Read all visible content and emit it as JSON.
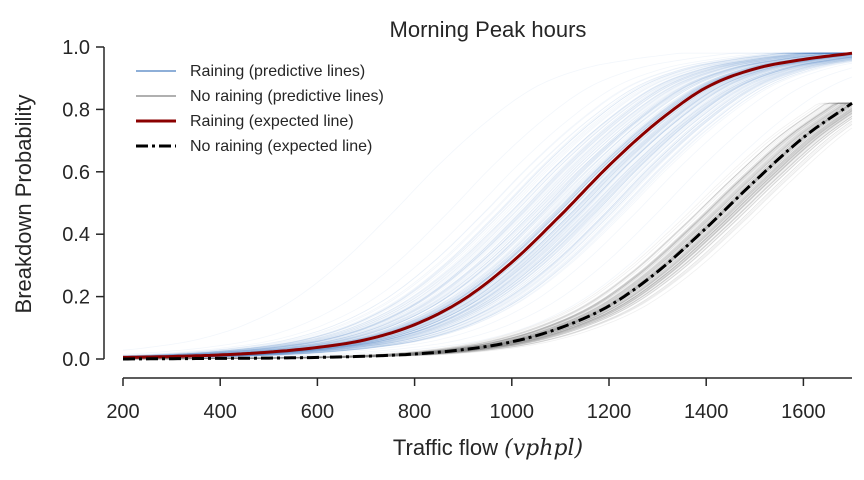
{
  "chart_data": {
    "type": "line",
    "title": "Morning Peak hours",
    "xlabel": "Traffic flow",
    "xlabel_unit": "(vphpl)",
    "ylabel": "Breakdown Probability",
    "xlim": [
      200,
      1700
    ],
    "ylim": [
      0.0,
      1.0
    ],
    "xticks": [
      "200",
      "400",
      "600",
      "800",
      "1000",
      "1200",
      "1400",
      "1600"
    ],
    "yticks": [
      "0.0",
      "0.2",
      "0.4",
      "0.6",
      "0.8",
      "1.0"
    ],
    "grid": false,
    "legend_position": "top-left",
    "series": [
      {
        "name": "Raining (predictive lines)",
        "color": "#4a7fc1",
        "style": "band of many thin predictive curves",
        "x": [
          200,
          300,
          400,
          500,
          600,
          700,
          800,
          900,
          1000,
          1100,
          1200,
          1300,
          1400,
          1500,
          1600,
          1700
        ],
        "y_expected": [
          0.005,
          0.008,
          0.013,
          0.022,
          0.037,
          0.062,
          0.11,
          0.19,
          0.31,
          0.46,
          0.62,
          0.76,
          0.87,
          0.93,
          0.96,
          0.98
        ]
      },
      {
        "name": "No raining (predictive lines)",
        "color": "#808080",
        "style": "band of many thin predictive curves",
        "x": [
          200,
          300,
          400,
          500,
          600,
          700,
          800,
          900,
          1000,
          1100,
          1200,
          1300,
          1400,
          1500,
          1600,
          1700
        ],
        "y_expected": [
          0.0,
          0.001,
          0.002,
          0.003,
          0.005,
          0.009,
          0.016,
          0.03,
          0.055,
          0.1,
          0.17,
          0.28,
          0.42,
          0.57,
          0.71,
          0.82
        ]
      },
      {
        "name": "Raining (expected line)",
        "color": "#8b0000",
        "style": "solid",
        "x": [
          200,
          300,
          400,
          500,
          600,
          700,
          800,
          900,
          1000,
          1100,
          1200,
          1300,
          1400,
          1500,
          1600,
          1700
        ],
        "y": [
          0.005,
          0.008,
          0.013,
          0.022,
          0.037,
          0.062,
          0.11,
          0.19,
          0.31,
          0.46,
          0.62,
          0.76,
          0.87,
          0.93,
          0.96,
          0.98
        ]
      },
      {
        "name": "No raining (expected line)",
        "color": "#000000",
        "style": "dash-dot",
        "x": [
          200,
          300,
          400,
          500,
          600,
          700,
          800,
          900,
          1000,
          1100,
          1200,
          1300,
          1400,
          1500,
          1600,
          1700
        ],
        "y": [
          0.0,
          0.001,
          0.002,
          0.003,
          0.005,
          0.009,
          0.016,
          0.03,
          0.055,
          0.1,
          0.17,
          0.28,
          0.42,
          0.57,
          0.71,
          0.82
        ]
      }
    ]
  }
}
